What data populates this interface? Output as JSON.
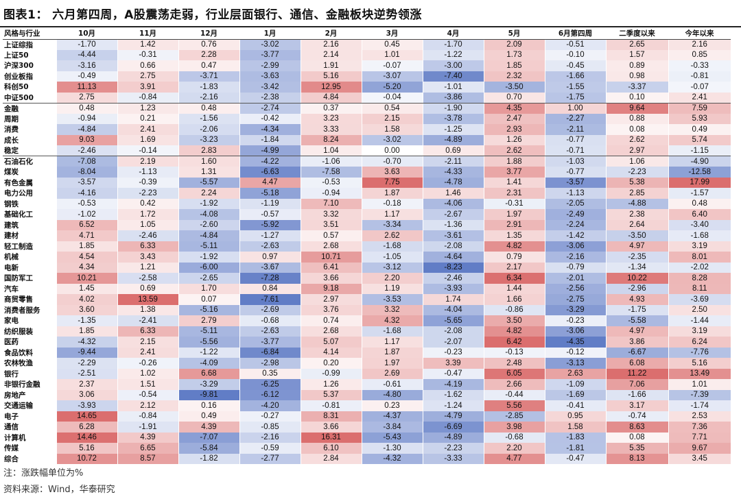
{
  "title": "图表1： 六月第四周，A股震荡走弱，行业层面银行、通信、金融板块逆势领涨",
  "headers": [
    "风格与行业",
    "10月",
    "11月",
    "12月",
    "1月",
    "2月",
    "3月",
    "4月",
    "5月",
    "6月第四周",
    "二季度以来",
    "今年以来"
  ],
  "groups": [
    [
      {
        "name": "上证综指",
        "values": [
          "-1.70",
          "1.42",
          "0.76",
          "-3.02",
          "2.16",
          "0.45",
          "-1.70",
          "2.09",
          "-0.51",
          "2.65",
          "2.16"
        ]
      },
      {
        "name": "上证50",
        "values": [
          "-4.44",
          "-0.31",
          "2.28",
          "-3.77",
          "2.14",
          "1.01",
          "-1.22",
          "1.73",
          "-0.10",
          "1.57",
          "0.85"
        ]
      },
      {
        "name": "沪深300",
        "values": [
          "-3.16",
          "0.66",
          "0.47",
          "-2.99",
          "1.91",
          "-0.07",
          "-3.00",
          "1.85",
          "-0.45",
          "0.89",
          "-0.33"
        ]
      },
      {
        "name": "创业板指",
        "values": [
          "-0.49",
          "2.75",
          "-3.71",
          "-3.63",
          "5.16",
          "-3.07",
          "-7.40",
          "2.32",
          "-1.66",
          "0.98",
          "-0.81"
        ]
      },
      {
        "name": "科创50",
        "values": [
          "11.13",
          "3.91",
          "-1.83",
          "-3.42",
          "12.95",
          "-5.20",
          "-1.01",
          "-3.50",
          "-1.55",
          "-3.37",
          "-0.07"
        ]
      },
      {
        "name": "中证500",
        "values": [
          "2.75",
          "-0.84",
          "-2.16",
          "-2.38",
          "4.84",
          "-0.04",
          "-3.86",
          "0.70",
          "-1.75",
          "0.10",
          "2.41"
        ]
      }
    ],
    [
      {
        "name": "金融",
        "values": [
          "0.48",
          "1.23",
          "0.48",
          "-2.74",
          "0.37",
          "0.54",
          "-1.90",
          "4.35",
          "1.00",
          "9.64",
          "7.59"
        ]
      },
      {
        "name": "周期",
        "values": [
          "-0.94",
          "0.21",
          "-1.56",
          "-0.42",
          "3.23",
          "2.15",
          "-3.78",
          "2.47",
          "-2.27",
          "0.88",
          "5.93"
        ]
      },
      {
        "name": "消费",
        "values": [
          "-4.84",
          "2.41",
          "-2.06",
          "-4.34",
          "3.33",
          "1.58",
          "-1.25",
          "2.93",
          "-2.11",
          "0.08",
          "0.49"
        ]
      },
      {
        "name": "成长",
        "values": [
          "9.03",
          "1.69",
          "-3.23",
          "-1.84",
          "8.24",
          "-3.02",
          "-4.89",
          "1.26",
          "-0.77",
          "2.62",
          "5.74"
        ]
      },
      {
        "name": "稳定",
        "values": [
          "-2.46",
          "-0.14",
          "2.83",
          "-4.99",
          "1.04",
          "0.00",
          "0.69",
          "2.62",
          "-0.71",
          "2.97",
          "-1.15"
        ]
      }
    ],
    [
      {
        "name": "石油石化",
        "values": [
          "-7.08",
          "2.19",
          "1.60",
          "-4.22",
          "-1.06",
          "-0.70",
          "-2.11",
          "1.88",
          "-1.03",
          "1.06",
          "-4.90"
        ]
      },
      {
        "name": "煤炭",
        "values": [
          "-8.04",
          "-1.13",
          "1.31",
          "-6.63",
          "-7.58",
          "3.63",
          "-4.33",
          "3.77",
          "-0.77",
          "-2.23",
          "-12.58"
        ]
      },
      {
        "name": "有色金属",
        "values": [
          "-3.57",
          "-0.39",
          "-5.57",
          "4.47",
          "-0.53",
          "7.75",
          "-4.78",
          "1.41",
          "-3.57",
          "5.38",
          "17.99"
        ]
      },
      {
        "name": "电力公用",
        "values": [
          "-4.16",
          "-2.23",
          "2.24",
          "-5.18",
          "-0.94",
          "1.87",
          "1.46",
          "2.31",
          "-1.13",
          "2.85",
          "-1.57"
        ]
      },
      {
        "name": "钢铁",
        "values": [
          "-0.53",
          "0.42",
          "-1.92",
          "-1.19",
          "7.10",
          "-0.18",
          "-4.06",
          "-0.31",
          "-2.05",
          "-4.88",
          "0.48"
        ]
      },
      {
        "name": "基础化工",
        "values": [
          "-1.02",
          "1.72",
          "-4.08",
          "-0.57",
          "3.32",
          "1.17",
          "-2.67",
          "1.97",
          "-2.49",
          "2.38",
          "6.40"
        ]
      },
      {
        "name": "建筑",
        "values": [
          "6.52",
          "1.05",
          "-2.60",
          "-5.92",
          "3.51",
          "-3.34",
          "-1.36",
          "2.91",
          "-2.24",
          "2.64",
          "-3.40"
        ]
      },
      {
        "name": "建材",
        "values": [
          "4.71",
          "-2.46",
          "-4.84",
          "-1.27",
          "0.57",
          "2.62",
          "-3.61",
          "1.35",
          "-1.42",
          "-3.50",
          "-1.68"
        ]
      },
      {
        "name": "轻工制造",
        "values": [
          "1.85",
          "6.33",
          "-5.11",
          "-2.63",
          "2.68",
          "-1.68",
          "-2.08",
          "4.82",
          "-3.06",
          "4.97",
          "3.19"
        ]
      },
      {
        "name": "机械",
        "values": [
          "4.54",
          "3.43",
          "-1.92",
          "0.97",
          "10.71",
          "-1.05",
          "-4.64",
          "0.79",
          "-2.16",
          "-2.35",
          "8.01"
        ]
      },
      {
        "name": "电新",
        "values": [
          "4.34",
          "1.21",
          "-6.00",
          "-3.67",
          "6.41",
          "-3.12",
          "-8.23",
          "2.17",
          "-0.79",
          "-1.34",
          "-2.02"
        ]
      },
      {
        "name": "国防军工",
        "values": [
          "10.21",
          "-2.58",
          "-2.65",
          "-7.28",
          "3.66",
          "2.20",
          "-2.46",
          "6.34",
          "-2.01",
          "10.22",
          "8.28"
        ]
      },
      {
        "name": "汽车",
        "values": [
          "1.45",
          "0.69",
          "1.70",
          "0.84",
          "9.18",
          "1.19",
          "-3.93",
          "1.44",
          "-2.56",
          "-2.96",
          "8.11"
        ]
      },
      {
        "name": "商贸零售",
        "values": [
          "4.02",
          "13.59",
          "0.07",
          "-7.61",
          "2.97",
          "-3.53",
          "1.74",
          "1.66",
          "-2.75",
          "4.93",
          "-3.69"
        ]
      },
      {
        "name": "消费者服务",
        "values": [
          "3.60",
          "1.38",
          "-5.16",
          "-2.69",
          "3.76",
          "3.32",
          "-4.04",
          "-0.86",
          "-3.29",
          "-1.75",
          "2.50"
        ]
      },
      {
        "name": "家电",
        "values": [
          "-1.35",
          "-2.41",
          "2.79",
          "-0.68",
          "0.74",
          "4.32",
          "-5.65",
          "3.50",
          "-0.23",
          "-5.58",
          "-1.44"
        ]
      },
      {
        "name": "纺织服装",
        "values": [
          "1.85",
          "6.33",
          "-5.11",
          "-2.63",
          "2.68",
          "-1.68",
          "-2.08",
          "4.82",
          "-3.06",
          "4.97",
          "3.19"
        ]
      },
      {
        "name": "医药",
        "values": [
          "-4.32",
          "2.15",
          "-5.56",
          "-3.77",
          "5.07",
          "1.17",
          "-2.07",
          "6.42",
          "-4.35",
          "3.86",
          "6.24"
        ]
      },
      {
        "name": "食品饮料",
        "values": [
          "-9.44",
          "2.41",
          "-1.22",
          "-6.84",
          "4.14",
          "1.87",
          "-0.23",
          "-0.13",
          "-0.12",
          "-6.67",
          "-7.76"
        ]
      },
      {
        "name": "农林牧渔",
        "values": [
          "-2.29",
          "-0.26",
          "-4.09",
          "-2.98",
          "0.20",
          "1.97",
          "3.39",
          "2.48",
          "-3.13",
          "6.08",
          "5.16"
        ]
      },
      {
        "name": "银行",
        "values": [
          "-2.51",
          "1.02",
          "6.68",
          "0.35",
          "-0.99",
          "2.69",
          "-0.47",
          "6.05",
          "2.63",
          "11.22",
          "13.49"
        ]
      },
      {
        "name": "非银行金融",
        "values": [
          "2.37",
          "1.51",
          "-3.29",
          "-6.25",
          "1.26",
          "-0.61",
          "-4.19",
          "2.66",
          "-1.09",
          "7.06",
          "1.01"
        ]
      },
      {
        "name": "房地产",
        "values": [
          "3.06",
          "-0.54",
          "-9.81",
          "-6.12",
          "5.37",
          "-4.80",
          "-1.62",
          "-0.44",
          "-1.69",
          "-1.66",
          "-7.39"
        ]
      },
      {
        "name": "交通运输",
        "values": [
          "-3.93",
          "2.12",
          "0.16",
          "-4.20",
          "-0.81",
          "0.23",
          "-1.24",
          "5.56",
          "-0.41",
          "3.17",
          "-1.74"
        ]
      },
      {
        "name": "电子",
        "values": [
          "14.65",
          "-0.84",
          "0.49",
          "-0.27",
          "8.31",
          "-4.37",
          "-4.79",
          "-2.85",
          "0.95",
          "-0.74",
          "2.53"
        ]
      },
      {
        "name": "通信",
        "values": [
          "6.28",
          "-1.91",
          "4.39",
          "-0.85",
          "3.66",
          "-3.84",
          "-6.69",
          "3.98",
          "1.58",
          "8.63",
          "7.36"
        ]
      },
      {
        "name": "计算机",
        "values": [
          "14.46",
          "4.39",
          "-7.07",
          "-2.16",
          "16.31",
          "-5.43",
          "-4.89",
          "-0.68",
          "-1.83",
          "0.08",
          "7.71"
        ]
      },
      {
        "name": "传媒",
        "values": [
          "5.16",
          "6.65",
          "-5.84",
          "-0.59",
          "6.10",
          "-1.30",
          "-2.23",
          "2.20",
          "-1.81",
          "5.35",
          "9.67"
        ]
      },
      {
        "name": "综合",
        "values": [
          "10.72",
          "8.57",
          "-1.82",
          "-2.77",
          "2.84",
          "-4.32",
          "-3.33",
          "4.77",
          "-0.47",
          "8.13",
          "3.45"
        ]
      }
    ]
  ],
  "note": "注：涨跌幅单位为%",
  "source": "资料来源：Wind，华泰研究",
  "colors": {
    "positive": "#d24a4a",
    "negative": "#3a5cb8"
  }
}
